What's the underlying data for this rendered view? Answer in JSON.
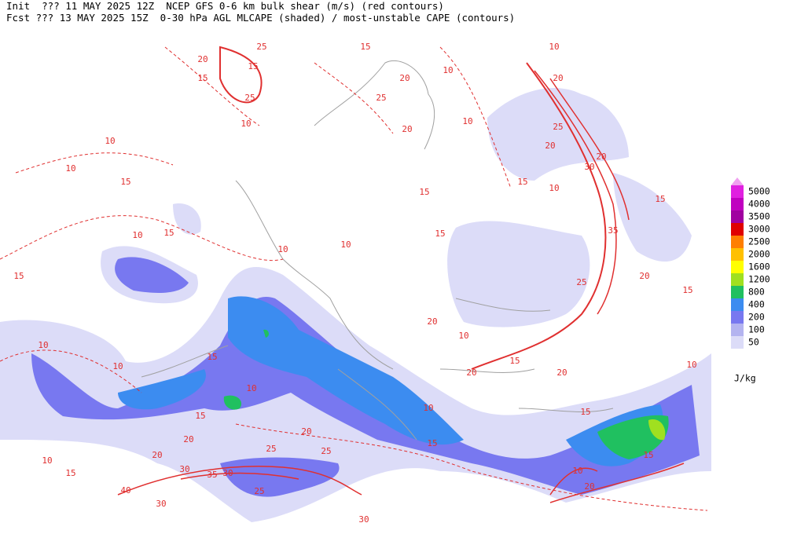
{
  "header": {
    "line1": "Init  ??? 11 MAY 2025 12Z  NCEP GFS 0-6 km bulk shear (m/s) (red contours)",
    "line2": "Fcst ??? 13 MAY 2025 15Z  0-30 hPa AGL MLCAPE (shaded) / most-unstable CAPE (contours)"
  },
  "legend": {
    "unit": "J/kg",
    "overflow_color": "#f0a0f0",
    "levels": [
      {
        "value": 5000,
        "color": "#e020e0"
      },
      {
        "value": 4000,
        "color": "#c000c0"
      },
      {
        "value": 3500,
        "color": "#a000a0"
      },
      {
        "value": 3000,
        "color": "#e00000"
      },
      {
        "value": 2500,
        "color": "#ff7f00"
      },
      {
        "value": 2000,
        "color": "#ffc000"
      },
      {
        "value": 1600,
        "color": "#ffff00"
      },
      {
        "value": 1200,
        "color": "#a0e020"
      },
      {
        "value": 800,
        "color": "#20c060"
      },
      {
        "value": 400,
        "color": "#3c8cf0"
      },
      {
        "value": 200,
        "color": "#7878f0"
      },
      {
        "value": 100,
        "color": "#b4b4f0"
      },
      {
        "value": 50,
        "color": "#dcdcf8"
      }
    ]
  },
  "contour_labels": [
    25,
    15,
    20,
    15,
    15,
    25,
    10,
    10,
    20,
    10,
    25,
    20,
    10,
    20,
    25,
    20,
    20,
    30,
    10,
    10,
    15,
    15,
    15,
    10,
    35,
    10,
    15,
    10,
    10,
    15,
    15,
    20,
    25,
    10,
    20,
    10,
    10,
    15,
    10,
    20,
    15,
    20,
    15,
    10,
    15,
    20,
    20,
    15,
    15,
    10,
    20,
    25,
    25,
    15,
    30,
    35,
    30,
    25,
    40,
    20,
    30,
    30,
    10,
    10,
    15,
    15
  ]
}
